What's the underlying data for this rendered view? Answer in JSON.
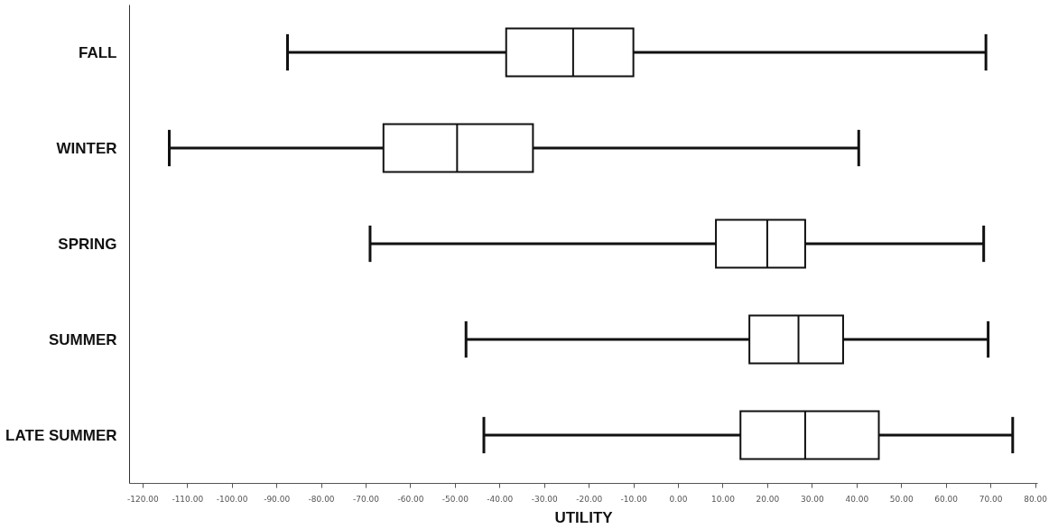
{
  "chart_data": {
    "type": "box",
    "orientation": "horizontal",
    "xlabel": "UTILITY",
    "categories": [
      "FALL",
      "WINTER",
      "SPRING",
      "SUMMER",
      "LATE SUMMER"
    ],
    "boxes": [
      {
        "low": -87.5,
        "q1": -38.5,
        "median": -23.5,
        "q3": -10,
        "high": 69
      },
      {
        "low": -114,
        "q1": -66,
        "median": -49.5,
        "q3": -32.5,
        "high": 40.5
      },
      {
        "low": -69,
        "q1": 8.5,
        "median": 20,
        "q3": 28.5,
        "high": 68.5
      },
      {
        "low": -47.5,
        "q1": 16,
        "median": 27,
        "q3": 37,
        "high": 69.5
      },
      {
        "low": -43.5,
        "q1": 14,
        "median": 28.5,
        "q3": 45,
        "high": 75
      }
    ],
    "xlim": [
      -123,
      80.5
    ],
    "xticks": [
      {
        "value": -120,
        "label": "-120.00"
      },
      {
        "value": -110,
        "label": "-110.00"
      },
      {
        "value": -100,
        "label": "-100.00"
      },
      {
        "value": -90,
        "label": "-90.00"
      },
      {
        "value": -80,
        "label": "-80.00"
      },
      {
        "value": -70,
        "label": "-70.00"
      },
      {
        "value": -60,
        "label": "-60.00"
      },
      {
        "value": -50,
        "label": "-50.00"
      },
      {
        "value": -40,
        "label": "-40.00"
      },
      {
        "value": -30,
        "label": "-30.00"
      },
      {
        "value": -20,
        "label": "-20.00"
      },
      {
        "value": -10,
        "label": "-10.00"
      },
      {
        "value": 0,
        "label": "0.00"
      },
      {
        "value": 10,
        "label": "10.00"
      },
      {
        "value": 20,
        "label": "20.00"
      },
      {
        "value": 30,
        "label": "30.00"
      },
      {
        "value": 40,
        "label": "40.00"
      },
      {
        "value": 50,
        "label": "50.00"
      },
      {
        "value": 60,
        "label": "60.00"
      },
      {
        "value": 70,
        "label": "70.00"
      },
      {
        "value": 80,
        "label": "80.00"
      }
    ],
    "grid": false
  }
}
